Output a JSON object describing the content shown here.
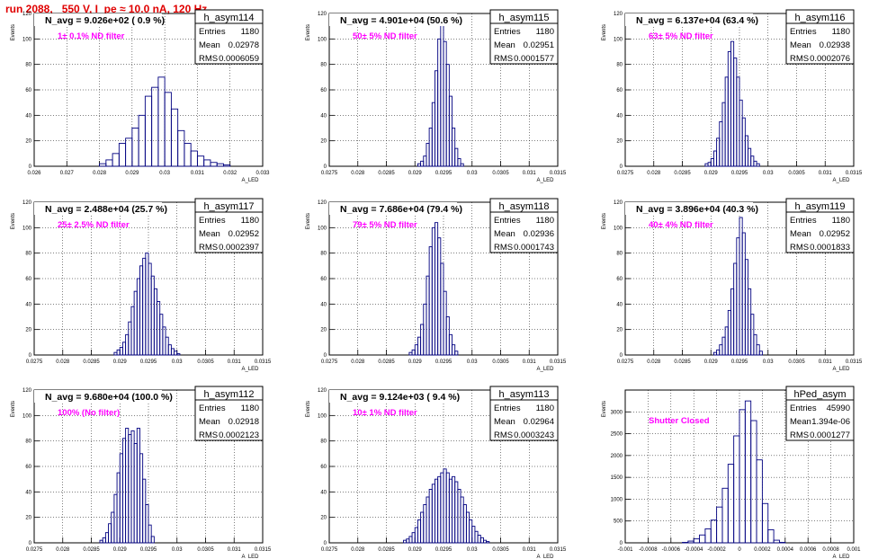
{
  "header": {
    "title": "run 2088,   550 V, I_pe ≈ 10.0 nA, 120 Hz"
  },
  "colors": {
    "title": "#e00000",
    "histogram": "#000080",
    "annotation": "#ff00ff",
    "grid": "#000000",
    "background": "#ffffff"
  },
  "chart_data": [
    {
      "type": "bar",
      "name": "h_asym114",
      "title": "N_avg = 9.026e+02 ( 0.9 %)",
      "annotation": "1± 0.1% ND filter",
      "stats": [
        {
          "label": "Entries",
          "value": "1180"
        },
        {
          "label": "Mean",
          "value": "0.02978"
        },
        {
          "label": "RMS",
          "value": "0.0006059"
        }
      ],
      "xlabel": "A_LED",
      "ylabel": "Events",
      "xlim": [
        0.026,
        0.033
      ],
      "ylim": [
        0,
        120
      ],
      "xticks": [
        0.026,
        0.027,
        0.028,
        0.029,
        0.03,
        0.031,
        0.032,
        0.033
      ],
      "xtick_labels": [
        "0.026",
        "0.027",
        "0.028",
        "0.029",
        "0.03",
        "0.031",
        "0.032",
        "0.033"
      ],
      "yticks": [
        0,
        20,
        40,
        60,
        80,
        100,
        120
      ],
      "ytick_labels": [
        "0",
        "20",
        "40",
        "60",
        "80",
        "100",
        "120"
      ],
      "bins": {
        "x": [
          0.028,
          0.0282,
          0.0284,
          0.0286,
          0.0288,
          0.029,
          0.0292,
          0.0294,
          0.0296,
          0.0298,
          0.03,
          0.0302,
          0.0304,
          0.0306,
          0.0308,
          0.031,
          0.0312,
          0.0314,
          0.0316,
          0.0318
        ],
        "values": [
          2,
          5,
          10,
          18,
          22,
          30,
          40,
          55,
          62,
          70,
          58,
          45,
          28,
          18,
          12,
          8,
          5,
          3,
          2,
          1
        ]
      }
    },
    {
      "type": "bar",
      "name": "h_asym115",
      "title": "N_avg = 4.901e+04 (50.6 %)",
      "annotation": "50± 5% ND filter",
      "stats": [
        {
          "label": "Entries",
          "value": "1180"
        },
        {
          "label": "Mean",
          "value": "0.02951"
        },
        {
          "label": "RMS",
          "value": "0.0001577"
        }
      ],
      "xlabel": "A_LED",
      "ylabel": "Events",
      "xlim": [
        0.0275,
        0.0315
      ],
      "ylim": [
        0,
        120
      ],
      "xticks": [
        0.0275,
        0.028,
        0.0285,
        0.029,
        0.0295,
        0.03,
        0.0305,
        0.031,
        0.0315
      ],
      "xtick_labels": [
        "0.0275",
        "0.028",
        "0.0285",
        "0.029",
        "0.0295",
        "0.03",
        "0.0305",
        "0.031",
        "0.0315"
      ],
      "yticks": [
        0,
        20,
        40,
        60,
        80,
        100,
        120
      ],
      "ytick_labels": [
        "0",
        "20",
        "40",
        "60",
        "80",
        "100",
        "120"
      ],
      "bins": {
        "x": [
          0.02905,
          0.0291,
          0.02915,
          0.0292,
          0.02925,
          0.0293,
          0.02935,
          0.0294,
          0.02945,
          0.0295,
          0.02955,
          0.0296,
          0.02965,
          0.0297,
          0.02975,
          0.0298
        ],
        "values": [
          2,
          4,
          8,
          18,
          30,
          50,
          75,
          100,
          112,
          98,
          80,
          55,
          30,
          14,
          6,
          2
        ]
      }
    },
    {
      "type": "bar",
      "name": "h_asym116",
      "title": "N_avg = 6.137e+04 (63.4 %)",
      "annotation": "63± 5% ND filter",
      "stats": [
        {
          "label": "Entries",
          "value": "1180"
        },
        {
          "label": "Mean",
          "value": "0.02938"
        },
        {
          "label": "RMS",
          "value": "0.0002076"
        }
      ],
      "xlabel": "A_LED",
      "ylabel": "Events",
      "xlim": [
        0.0275,
        0.0315
      ],
      "ylim": [
        0,
        120
      ],
      "xticks": [
        0.0275,
        0.028,
        0.0285,
        0.029,
        0.0295,
        0.03,
        0.0305,
        0.031,
        0.0315
      ],
      "xtick_labels": [
        "0.0275",
        "0.028",
        "0.0285",
        "0.029",
        "0.0295",
        "0.03",
        "0.0305",
        "0.031",
        "0.0315"
      ],
      "yticks": [
        0,
        20,
        40,
        60,
        80,
        100,
        120
      ],
      "ytick_labels": [
        "0",
        "20",
        "40",
        "60",
        "80",
        "100",
        "120"
      ],
      "bins": {
        "x": [
          0.0289,
          0.02895,
          0.029,
          0.02905,
          0.0291,
          0.02915,
          0.0292,
          0.02925,
          0.0293,
          0.02935,
          0.0294,
          0.02945,
          0.0295,
          0.02955,
          0.0296,
          0.02965,
          0.0297,
          0.02975,
          0.0298
        ],
        "values": [
          2,
          3,
          6,
          12,
          22,
          35,
          50,
          70,
          90,
          98,
          85,
          70,
          52,
          38,
          24,
          14,
          8,
          4,
          2
        ]
      }
    },
    {
      "type": "bar",
      "name": "h_asym117",
      "title": "N_avg = 2.488e+04 (25.7 %)",
      "annotation": "25± 2.5% ND filter",
      "stats": [
        {
          "label": "Entries",
          "value": "1180"
        },
        {
          "label": "Mean",
          "value": "0.02952"
        },
        {
          "label": "RMS",
          "value": "0.0002397"
        }
      ],
      "xlabel": "A_LED",
      "ylabel": "Events",
      "xlim": [
        0.0275,
        0.0315
      ],
      "ylim": [
        0,
        120
      ],
      "xticks": [
        0.0275,
        0.028,
        0.0285,
        0.029,
        0.0295,
        0.03,
        0.0305,
        0.031,
        0.0315
      ],
      "xtick_labels": [
        "0.0275",
        "0.028",
        "0.0285",
        "0.029",
        "0.0295",
        "0.03",
        "0.0305",
        "0.031",
        "0.0315"
      ],
      "yticks": [
        0,
        20,
        40,
        60,
        80,
        100,
        120
      ],
      "ytick_labels": [
        "0",
        "20",
        "40",
        "60",
        "80",
        "100",
        "120"
      ],
      "bins": {
        "x": [
          0.0289,
          0.02895,
          0.029,
          0.02905,
          0.0291,
          0.02915,
          0.0292,
          0.02925,
          0.0293,
          0.02935,
          0.0294,
          0.02945,
          0.0295,
          0.02955,
          0.0296,
          0.02965,
          0.0297,
          0.02975,
          0.0298,
          0.02985,
          0.0299,
          0.02995,
          0.03
        ],
        "values": [
          2,
          4,
          6,
          10,
          16,
          26,
          38,
          50,
          60,
          70,
          76,
          80,
          72,
          62,
          52,
          42,
          32,
          22,
          14,
          8,
          5,
          3,
          1
        ]
      }
    },
    {
      "type": "bar",
      "name": "h_asym118",
      "title": "N_avg = 7.686e+04 (79.4 %)",
      "annotation": "79± 5% ND filter",
      "stats": [
        {
          "label": "Entries",
          "value": "1180"
        },
        {
          "label": "Mean",
          "value": "0.02936"
        },
        {
          "label": "RMS",
          "value": "0.0001743"
        }
      ],
      "xlabel": "A_LED",
      "ylabel": "Events",
      "xlim": [
        0.0275,
        0.0315
      ],
      "ylim": [
        0,
        120
      ],
      "xticks": [
        0.0275,
        0.028,
        0.0285,
        0.029,
        0.0295,
        0.03,
        0.0305,
        0.031,
        0.0315
      ],
      "xtick_labels": [
        "0.0275",
        "0.028",
        "0.0285",
        "0.029",
        "0.0295",
        "0.03",
        "0.0305",
        "0.031",
        "0.0315"
      ],
      "yticks": [
        0,
        20,
        40,
        60,
        80,
        100,
        120
      ],
      "ytick_labels": [
        "0",
        "20",
        "40",
        "60",
        "80",
        "100",
        "120"
      ],
      "bins": {
        "x": [
          0.0289,
          0.02895,
          0.029,
          0.02905,
          0.0291,
          0.02915,
          0.0292,
          0.02925,
          0.0293,
          0.02935,
          0.0294,
          0.02945,
          0.0295,
          0.02955,
          0.0296,
          0.02965,
          0.0297
        ],
        "values": [
          2,
          4,
          8,
          14,
          24,
          40,
          62,
          85,
          100,
          104,
          92,
          72,
          50,
          30,
          16,
          8,
          3
        ]
      }
    },
    {
      "type": "bar",
      "name": "h_asym119",
      "title": "N_avg = 3.896e+04 (40.3 %)",
      "annotation": "40± 4% ND filter",
      "stats": [
        {
          "label": "Entries",
          "value": "1180"
        },
        {
          "label": "Mean",
          "value": "0.02952"
        },
        {
          "label": "RMS",
          "value": "0.0001833"
        }
      ],
      "xlabel": "A_LED",
      "ylabel": "Events",
      "xlim": [
        0.0275,
        0.0315
      ],
      "ylim": [
        0,
        120
      ],
      "xticks": [
        0.0275,
        0.028,
        0.0285,
        0.029,
        0.0295,
        0.03,
        0.0305,
        0.031,
        0.0315
      ],
      "xtick_labels": [
        "0.0275",
        "0.028",
        "0.0285",
        "0.029",
        "0.0295",
        "0.03",
        "0.0305",
        "0.031",
        "0.0315"
      ],
      "yticks": [
        0,
        20,
        40,
        60,
        80,
        100,
        120
      ],
      "ytick_labels": [
        "0",
        "20",
        "40",
        "60",
        "80",
        "100",
        "120"
      ],
      "bins": {
        "x": [
          0.02905,
          0.0291,
          0.02915,
          0.0292,
          0.02925,
          0.0293,
          0.02935,
          0.0294,
          0.02945,
          0.0295,
          0.02955,
          0.0296,
          0.02965,
          0.0297,
          0.02975,
          0.0298,
          0.02985
        ],
        "values": [
          2,
          4,
          8,
          14,
          22,
          35,
          52,
          72,
          92,
          108,
          96,
          75,
          52,
          32,
          16,
          8,
          3
        ]
      }
    },
    {
      "type": "bar",
      "name": "h_asym112",
      "title": "N_avg = 9.680e+04 (100.0 %)",
      "annotation": "100% (No filter)",
      "stats": [
        {
          "label": "Entries",
          "value": "1180"
        },
        {
          "label": "Mean",
          "value": "0.02918"
        },
        {
          "label": "RMS",
          "value": "0.0002123"
        }
      ],
      "xlabel": "A_LED",
      "ylabel": "Events",
      "xlim": [
        0.0275,
        0.0315
      ],
      "ylim": [
        0,
        120
      ],
      "xticks": [
        0.0275,
        0.028,
        0.0285,
        0.029,
        0.0295,
        0.03,
        0.0305,
        0.031,
        0.0315
      ],
      "xtick_labels": [
        "0.0275",
        "0.028",
        "0.0285",
        "0.029",
        "0.0295",
        "0.03",
        "0.0305",
        "0.031",
        "0.0315"
      ],
      "yticks": [
        0,
        20,
        40,
        60,
        80,
        100,
        120
      ],
      "ytick_labels": [
        "0",
        "20",
        "40",
        "60",
        "80",
        "100",
        "120"
      ],
      "bins": {
        "x": [
          0.02865,
          0.0287,
          0.02875,
          0.0288,
          0.02885,
          0.0289,
          0.02895,
          0.029,
          0.02905,
          0.0291,
          0.02915,
          0.0292,
          0.02925,
          0.0293,
          0.02935,
          0.0294,
          0.02945,
          0.0295,
          0.02955
        ],
        "values": [
          2,
          4,
          8,
          15,
          24,
          38,
          55,
          70,
          82,
          90,
          85,
          88,
          78,
          90,
          70,
          50,
          30,
          14,
          5
        ]
      }
    },
    {
      "type": "bar",
      "name": "h_asym113",
      "title": "N_avg = 9.124e+03 ( 9.4 %)",
      "annotation": "10± 1% ND filter",
      "stats": [
        {
          "label": "Entries",
          "value": "1180"
        },
        {
          "label": "Mean",
          "value": "0.02964"
        },
        {
          "label": "RMS",
          "value": "0.0003243"
        }
      ],
      "xlabel": "A_LED",
      "ylabel": "Events",
      "xlim": [
        0.0275,
        0.0315
      ],
      "ylim": [
        0,
        120
      ],
      "xticks": [
        0.0275,
        0.028,
        0.0285,
        0.029,
        0.0295,
        0.03,
        0.0305,
        0.031,
        0.0315
      ],
      "xtick_labels": [
        "0.0275",
        "0.028",
        "0.0285",
        "0.029",
        "0.0295",
        "0.03",
        "0.0305",
        "0.031",
        "0.0315"
      ],
      "yticks": [
        0,
        20,
        40,
        60,
        80,
        100,
        120
      ],
      "ytick_labels": [
        "0",
        "20",
        "40",
        "60",
        "80",
        "100",
        "120"
      ],
      "bins": {
        "x": [
          0.0288,
          0.02885,
          0.0289,
          0.02895,
          0.029,
          0.02905,
          0.0291,
          0.02915,
          0.0292,
          0.02925,
          0.0293,
          0.02935,
          0.0294,
          0.02945,
          0.0295,
          0.02955,
          0.0296,
          0.02965,
          0.0297,
          0.02975,
          0.0298,
          0.02985,
          0.0299,
          0.02995,
          0.03,
          0.03005,
          0.0301,
          0.03015,
          0.0302,
          0.03025
        ],
        "values": [
          2,
          3,
          5,
          8,
          12,
          18,
          24,
          30,
          36,
          42,
          46,
          50,
          52,
          55,
          58,
          55,
          50,
          52,
          48,
          42,
          36,
          30,
          24,
          18,
          13,
          9,
          6,
          4,
          2,
          1
        ]
      }
    },
    {
      "type": "bar",
      "name": "hPed_asym",
      "title": "",
      "annotation": "Shutter Closed",
      "stats": [
        {
          "label": "Entries",
          "value": "45990"
        },
        {
          "label": "Mean",
          "value": "1.394e-06"
        },
        {
          "label": "RMS",
          "value": "0.0001277"
        }
      ],
      "xlabel": "A_LED",
      "ylabel": "Events",
      "xlim": [
        -0.001,
        0.001
      ],
      "ylim": [
        0,
        3500
      ],
      "xticks": [
        -0.001,
        -0.0008,
        -0.0006,
        -0.0004,
        -0.0002,
        0,
        0.0002,
        0.0004,
        0.0006,
        0.0008,
        0.001
      ],
      "xtick_labels": [
        "-0.001",
        "-0.0008",
        "-0.0006",
        "-0.0004",
        "-0.0002",
        "0",
        "0.0002",
        "0.0004",
        "0.0006",
        "0.0008",
        "0.001"
      ],
      "yticks": [
        0,
        500,
        1000,
        1500,
        2000,
        2500,
        3000
      ],
      "ytick_labels": [
        "0",
        "500",
        "1000",
        "1500",
        "2000",
        "2500",
        "3000"
      ],
      "bins": {
        "x": [
          -0.0005,
          -0.00045,
          -0.0004,
          -0.00035,
          -0.0003,
          -0.00025,
          -0.0002,
          -0.00015,
          -0.0001,
          -5e-05,
          0,
          5e-05,
          0.0001,
          0.00015,
          0.0002,
          0.00025,
          0.0003,
          0.00035
        ],
        "values": [
          10,
          40,
          90,
          180,
          320,
          520,
          820,
          1250,
          1800,
          2450,
          3050,
          3250,
          2800,
          1900,
          900,
          300,
          60,
          10
        ]
      }
    }
  ]
}
